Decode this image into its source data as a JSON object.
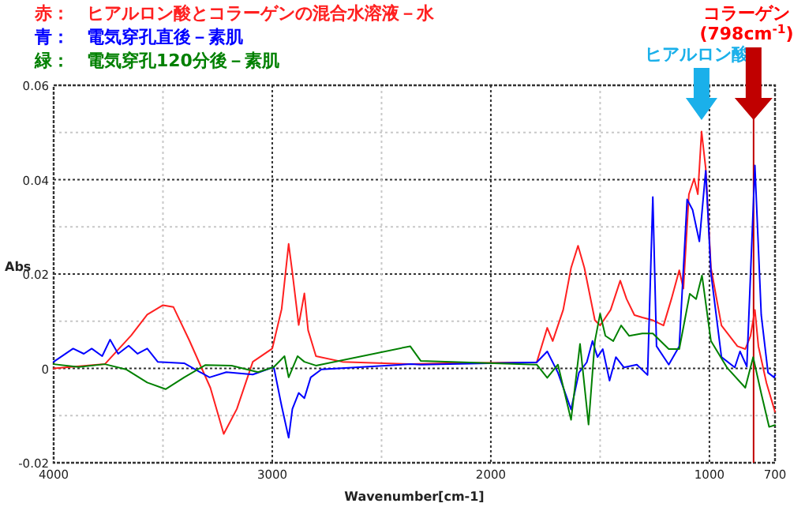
{
  "chart_data": {
    "type": "line",
    "xlabel": "Wavenumber[cm-1]",
    "ylabel": "Abs",
    "xlim": [
      4000,
      700
    ],
    "xticks": [
      4000,
      3000,
      2000,
      1000,
      700
    ],
    "ylim": [
      -0.02,
      0.06
    ],
    "yticks": [
      -0.02,
      0,
      0.02,
      0.04,
      0.06
    ],
    "grid": true,
    "legend": "top left",
    "marker": "none",
    "line_style": "solid",
    "series": [
      {
        "name": "赤：　ヒアルロン酸とコラーゲンの混合水溶液－水",
        "color": "#ff2020",
        "x": [
          4000,
          3766,
          3645,
          3572,
          3500,
          3452,
          3379,
          3283,
          3222,
          3162,
          3089,
          3000,
          2957,
          2925,
          2908,
          2879,
          2853,
          2836,
          2800,
          2679,
          2365,
          2200,
          1790,
          1742,
          1717,
          1669,
          1633,
          1601,
          1572,
          1524,
          1500,
          1452,
          1408,
          1379,
          1343,
          1307,
          1259,
          1210,
          1174,
          1138,
          1119,
          1094,
          1070,
          1053,
          1036,
          1017,
          993,
          945,
          872,
          836,
          812,
          792,
          776,
          739,
          700
        ],
        "values": [
          0,
          0.0009,
          0.007,
          0.0114,
          0.0134,
          0.013,
          0.0059,
          -0.0041,
          -0.0139,
          -0.0086,
          0.0014,
          0.0042,
          0.0126,
          0.0264,
          0.0203,
          0.0092,
          0.0159,
          0.0081,
          0.0026,
          0.0014,
          0.0009,
          0.0011,
          0.0013,
          0.0086,
          0.0058,
          0.0124,
          0.0213,
          0.026,
          0.0213,
          0.0102,
          0.0091,
          0.0124,
          0.0186,
          0.0147,
          0.0113,
          0.0108,
          0.0102,
          0.0091,
          0.0147,
          0.0208,
          0.0169,
          0.0369,
          0.0402,
          0.0369,
          0.0502,
          0.0424,
          0.0213,
          0.0091,
          0.0047,
          0.0041,
          0.0069,
          0.0124,
          0.0047,
          -0.0031,
          -0.0092
        ]
      },
      {
        "name": "青：　電気穿孔直後－素肌",
        "color": "#0000ff",
        "x": [
          4000,
          3911,
          3862,
          3826,
          3778,
          3742,
          3705,
          3657,
          3616,
          3572,
          3524,
          3403,
          3287,
          3210,
          3089,
          2993,
          2957,
          2925,
          2908,
          2879,
          2853,
          2824,
          2775,
          2365,
          2321,
          1790,
          1742,
          1693,
          1633,
          1597,
          1561,
          1535,
          1512,
          1488,
          1457,
          1428,
          1391,
          1332,
          1283,
          1259,
          1242,
          1186,
          1138,
          1102,
          1077,
          1046,
          1017,
          993,
          945,
          884,
          860,
          829,
          792,
          763,
          732,
          704,
          700
        ],
        "values": [
          0.0014,
          0.0042,
          0.0031,
          0.0042,
          0.0026,
          0.0061,
          0.0031,
          0.0048,
          0.0031,
          0.0042,
          0.0014,
          0.0011,
          -0.0019,
          -0.0008,
          -0.0013,
          0.0003,
          -0.008,
          -0.0147,
          -0.0086,
          -0.0052,
          -0.0063,
          -0.0019,
          -0.0002,
          0.0009,
          0.0008,
          0.0013,
          0.0036,
          -0.0009,
          -0.0087,
          -0.0009,
          0.0013,
          0.0058,
          0.0024,
          0.0041,
          -0.0026,
          0.0024,
          0.0002,
          0.0008,
          -0.0014,
          0.0363,
          0.0047,
          0.0008,
          0.0047,
          0.0358,
          0.0336,
          0.0269,
          0.0419,
          0.0202,
          0.0024,
          0.0002,
          0.0036,
          0.0004,
          0.043,
          0.0113,
          -0.0009,
          -0.0019,
          -0.0014
        ]
      },
      {
        "name": "緑：　電気穿孔120分後－素肌",
        "color": "#008000",
        "x": [
          4000,
          3886,
          3766,
          3669,
          3572,
          3488,
          3403,
          3307,
          3186,
          3065,
          2993,
          2944,
          2925,
          2884,
          2853,
          2800,
          2369,
          2321,
          1790,
          1742,
          1693,
          1633,
          1592,
          1553,
          1524,
          1500,
          1476,
          1440,
          1404,
          1367,
          1307,
          1259,
          1186,
          1138,
          1090,
          1061,
          1034,
          993,
          920,
          836,
          800,
          763,
          727,
          700
        ],
        "values": [
          0.0009,
          0.0003,
          0.0009,
          -0.0002,
          -0.003,
          -0.0044,
          -0.0019,
          0.0007,
          0.0006,
          -0.0008,
          0.0003,
          0.0026,
          -0.0019,
          0.0026,
          0.0014,
          0.0006,
          0.0047,
          0.0016,
          0.0008,
          -0.002,
          0.0008,
          -0.0109,
          0.0052,
          -0.0119,
          0.0058,
          0.0116,
          0.0069,
          0.0058,
          0.0091,
          0.0069,
          0.0074,
          0.0074,
          0.0041,
          0.0041,
          0.0158,
          0.0147,
          0.0197,
          0.0058,
          0.0002,
          -0.0041,
          0.0024,
          -0.0053,
          -0.0124,
          -0.012
        ]
      }
    ],
    "ref_lines": [
      {
        "axis": "x",
        "value": 798,
        "color": "#c00000"
      }
    ],
    "annotations": [
      "ヒアルロン酸",
      "コラーゲン (798cm$^{-1}$)"
    ]
  }
}
